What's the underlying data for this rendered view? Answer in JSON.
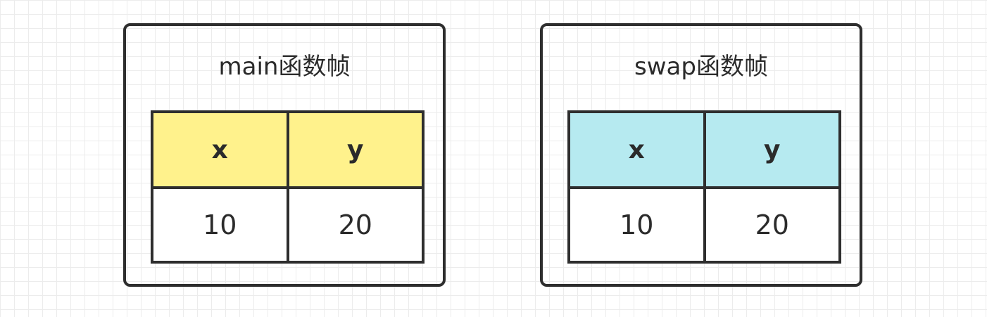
{
  "colors": {
    "main_header_fill": "#fff28c",
    "swap_header_fill": "#b6eaf0",
    "border": "#2e2e2e",
    "text": "#2b2b2b"
  },
  "frames": [
    {
      "title": "main函数帧",
      "columns": [
        "x",
        "y"
      ],
      "values": [
        "10",
        "20"
      ]
    },
    {
      "title": "swap函数帧",
      "columns": [
        "x",
        "y"
      ],
      "values": [
        "10",
        "20"
      ]
    }
  ]
}
